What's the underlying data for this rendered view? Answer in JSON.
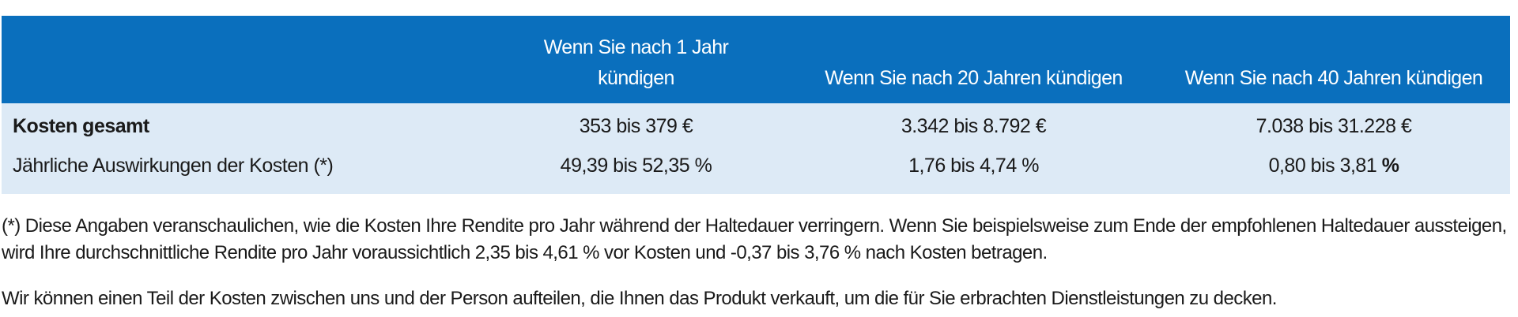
{
  "table": {
    "headers": [
      "",
      "Wenn Sie nach 1 Jahr kündigen",
      "Wenn Sie nach 20 Jahren kündigen",
      "Wenn Sie nach 40 Jahren kündigen"
    ],
    "header_1_line1": "Wenn Sie nach 1 Jahr",
    "header_1_line2": "kündigen",
    "rows": [
      {
        "label": "Kosten gesamt",
        "values": [
          "353 bis 379 €",
          "3.342 bis 8.792 €",
          "7.038 bis 31.228 €"
        ]
      },
      {
        "label": "Jährliche Auswirkungen der Kosten (*)",
        "values": [
          "49,39 bis 52,35 %",
          "1,76 bis 4,74 %",
          "0,80 bis 3,81"
        ],
        "last_suffix": "%"
      }
    ]
  },
  "footnote": "(*) Diese Angaben veranschaulichen, wie die Kosten Ihre Rendite pro Jahr während der Haltedauer verringern. Wenn Sie beispielsweise zum Ende der empfohlenen Haltedauer aussteigen, wird Ihre durchschnittliche Rendite pro Jahr voraussichtlich 2,35 bis 4,61 % vor Kosten und -0,37 bis 3,76 % nach Kosten betragen.",
  "note_2": "Wir können einen Teil der Kosten zwischen uns und der Person aufteilen, die Ihnen das Produkt verkauft, um die für Sie erbrachten Dienstleistungen zu decken.",
  "colors": {
    "header_bg": "#0a6fbd",
    "body_bg": "#ddeaf6"
  }
}
